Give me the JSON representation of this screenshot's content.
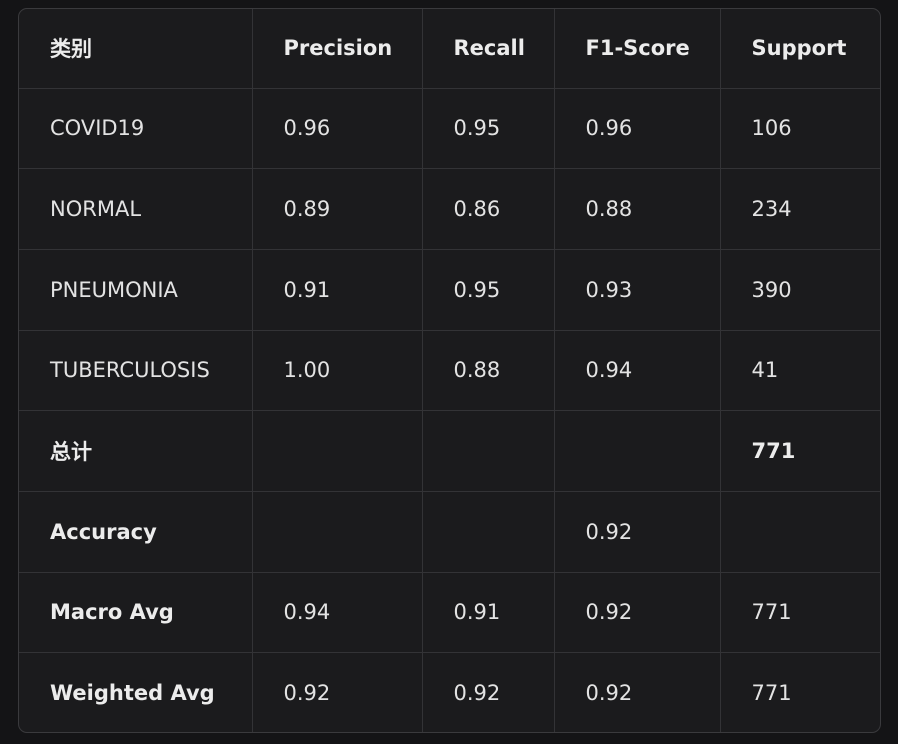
{
  "table": {
    "headers": [
      "类别",
      "Precision",
      "Recall",
      "F1-Score",
      "Support"
    ],
    "rows": [
      [
        "COVID19",
        "0.96",
        "0.95",
        "0.96",
        "106"
      ],
      [
        "NORMAL",
        "0.89",
        "0.86",
        "0.88",
        "234"
      ],
      [
        "PNEUMONIA",
        "0.91",
        "0.95",
        "0.93",
        "390"
      ],
      [
        "TUBERCULOSIS",
        "1.00",
        "0.88",
        "0.94",
        "41"
      ],
      [
        "总计",
        "",
        "",
        "",
        "771"
      ],
      [
        "Accuracy",
        "",
        "",
        "0.92",
        ""
      ],
      [
        "Macro Avg",
        "0.94",
        "0.91",
        "0.92",
        "771"
      ],
      [
        "Weighted Avg",
        "0.92",
        "0.92",
        "0.92",
        "771"
      ]
    ]
  }
}
